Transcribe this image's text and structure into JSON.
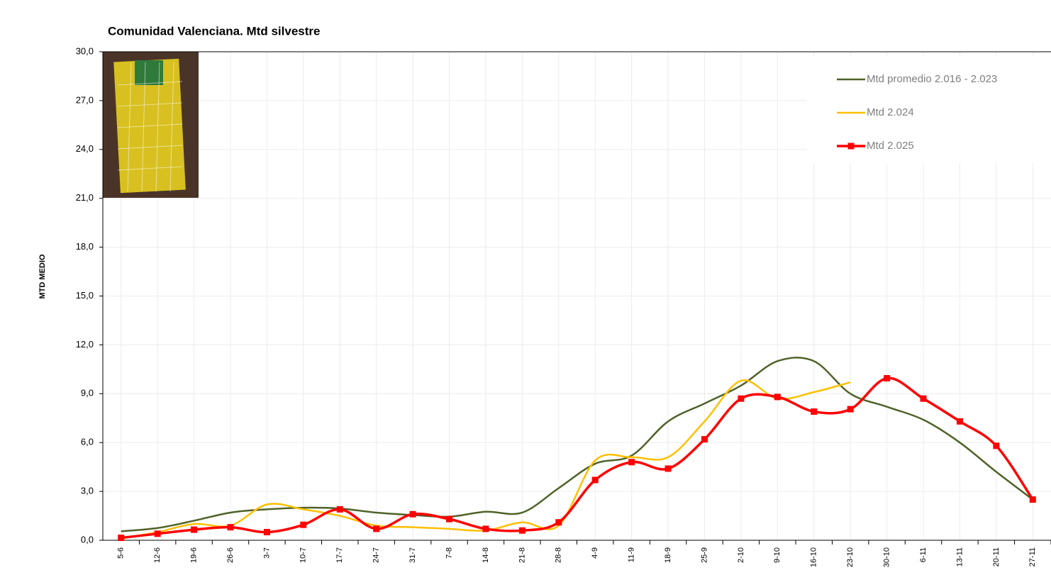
{
  "chart_data": {
    "type": "line",
    "title": "Comunidad Valenciana. Mtd silvestre",
    "y_label": "MTD MEDIO",
    "categories": [
      "5-6",
      "12-6",
      "19-6",
      "26-6",
      "3-7",
      "10-7",
      "17-7",
      "24-7",
      "31-7",
      "7-8",
      "14-8",
      "21-8",
      "28-8",
      "4-9",
      "11-9",
      "18-9",
      "25-9",
      "2-10",
      "9-10",
      "16-10",
      "23-10",
      "30-10",
      "6-11",
      "13-11",
      "20-11",
      "27-11"
    ],
    "series": [
      {
        "name": "Mtd promedio 2.016 - 2.023",
        "color": "#4f6228",
        "markers": false,
        "values": [
          0.55,
          0.75,
          1.2,
          1.7,
          1.9,
          2.0,
          1.95,
          1.7,
          1.55,
          1.45,
          1.75,
          1.7,
          3.2,
          4.7,
          5.2,
          7.3,
          8.4,
          9.5,
          11.0,
          11.0,
          9.0,
          8.2,
          7.4,
          6.0,
          4.2,
          2.5
        ]
      },
      {
        "name": "Mtd 2.024",
        "color": "#ffc000",
        "markers": false,
        "values": [
          0.1,
          0.5,
          1.0,
          0.9,
          2.2,
          1.9,
          1.5,
          0.9,
          0.8,
          0.7,
          0.6,
          1.1,
          0.9,
          4.9,
          5.1,
          5.1,
          7.3,
          9.8,
          8.7,
          9.1,
          9.7,
          null,
          null,
          null,
          null,
          null
        ]
      },
      {
        "name": "Mtd 2.025",
        "color": "#ff0000",
        "markers": true,
        "values": [
          0.15,
          0.4,
          0.65,
          0.8,
          0.5,
          0.95,
          1.9,
          0.7,
          1.6,
          1.3,
          0.7,
          0.6,
          1.1,
          3.7,
          4.8,
          4.4,
          6.2,
          8.7,
          8.8,
          7.9,
          8.05,
          9.95,
          8.7,
          7.3,
          5.8,
          2.5
        ]
      }
    ],
    "ylim": [
      0,
      30
    ],
    "yticks": [
      {
        "value": 0,
        "label": "0,0"
      },
      {
        "value": 3,
        "label": "3,0"
      },
      {
        "value": 6,
        "label": "6,0"
      },
      {
        "value": 9,
        "label": "9,0"
      },
      {
        "value": 12,
        "label": "12,0"
      },
      {
        "value": 15,
        "label": "15,0"
      },
      {
        "value": 18,
        "label": "18,0"
      },
      {
        "value": 21,
        "label": "21,0"
      },
      {
        "value": 24,
        "label": "24,0"
      },
      {
        "value": 27,
        "label": "27,0"
      },
      {
        "value": 30,
        "label": "30,0"
      }
    ],
    "grid": true,
    "smooth": true,
    "legend": "top-right"
  }
}
